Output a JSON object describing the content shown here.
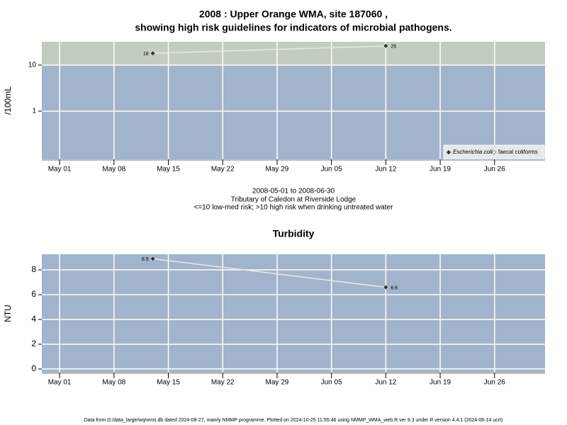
{
  "chart_data": [
    {
      "type": "line",
      "title": "2008 : Upper Orange WMA, site 187060 ,",
      "subtitle": "showing high risk guidelines for indicators of microbial pathogens.",
      "y_label": "/100mL",
      "log_y": true,
      "threshold": 10,
      "grid": true,
      "legend": "bottom-right",
      "x": [
        "2008-05-13",
        "2008-06-12"
      ],
      "xlim": [
        "2008-04-28T17:00",
        "2008-07-02T12:00"
      ],
      "xticks": [
        {
          "value": "2008-05-01",
          "label": "May 01"
        },
        {
          "value": "2008-05-08",
          "label": "May 08"
        },
        {
          "value": "2008-05-15",
          "label": "May 15"
        },
        {
          "value": "2008-05-22",
          "label": "May 22"
        },
        {
          "value": "2008-05-29",
          "label": "May 29"
        },
        {
          "value": "2008-06-05",
          "label": "Jun 05"
        },
        {
          "value": "2008-06-12",
          "label": "Jun 12"
        },
        {
          "value": "2008-06-19",
          "label": "Jun 19"
        },
        {
          "value": "2008-06-26",
          "label": "Jun 26"
        }
      ],
      "ylim": [
        0.09,
        32
      ],
      "yticks": [
        1,
        10
      ],
      "series": [
        {
          "name": "Escherichia coli",
          "color": "#333333",
          "values": [
            18,
            26
          ]
        },
        {
          "name": "faecal coliforms",
          "color": "#ffffff",
          "values": [
            null,
            null
          ]
        }
      ]
    },
    {
      "type": "line",
      "title": "Turbidity",
      "y_label": "NTU",
      "log_y": false,
      "grid": true,
      "x": [
        "2008-05-13",
        "2008-06-12"
      ],
      "xlim": [
        "2008-04-28T17:00",
        "2008-07-02T12:00"
      ],
      "xticks": [
        {
          "value": "2008-05-01",
          "label": "May 01"
        },
        {
          "value": "2008-05-08",
          "label": "May 08"
        },
        {
          "value": "2008-05-15",
          "label": "May 15"
        },
        {
          "value": "2008-05-22",
          "label": "May 22"
        },
        {
          "value": "2008-05-29",
          "label": "May 29"
        },
        {
          "value": "2008-06-05",
          "label": "Jun 05"
        },
        {
          "value": "2008-06-12",
          "label": "Jun 12"
        },
        {
          "value": "2008-06-19",
          "label": "Jun 19"
        },
        {
          "value": "2008-06-26",
          "label": "Jun 26"
        }
      ],
      "ylim": [
        -0.29,
        9.26
      ],
      "yticks": [
        0,
        2,
        4,
        6,
        8
      ],
      "series": [
        {
          "name": "Turbidity",
          "color": "#333333",
          "values": [
            8.9,
            6.6
          ]
        }
      ]
    }
  ],
  "caption": [
    "2008-05-01 to 2008-06-30",
    "Tributary of Caledon at Riverside Lodge",
    "<=10 low-med risk; >10 high risk when drinking untreated water"
  ],
  "footer": "Data from D:/data_large/wq/wms.db dated 2024-08-27, mainly NMMP programme. Plotted on 2024-10-25 11:55:46 using NMMP_WMA_web.R ver 9.3 under R version 4.4.1 (2024-06-14 ucrt)"
}
